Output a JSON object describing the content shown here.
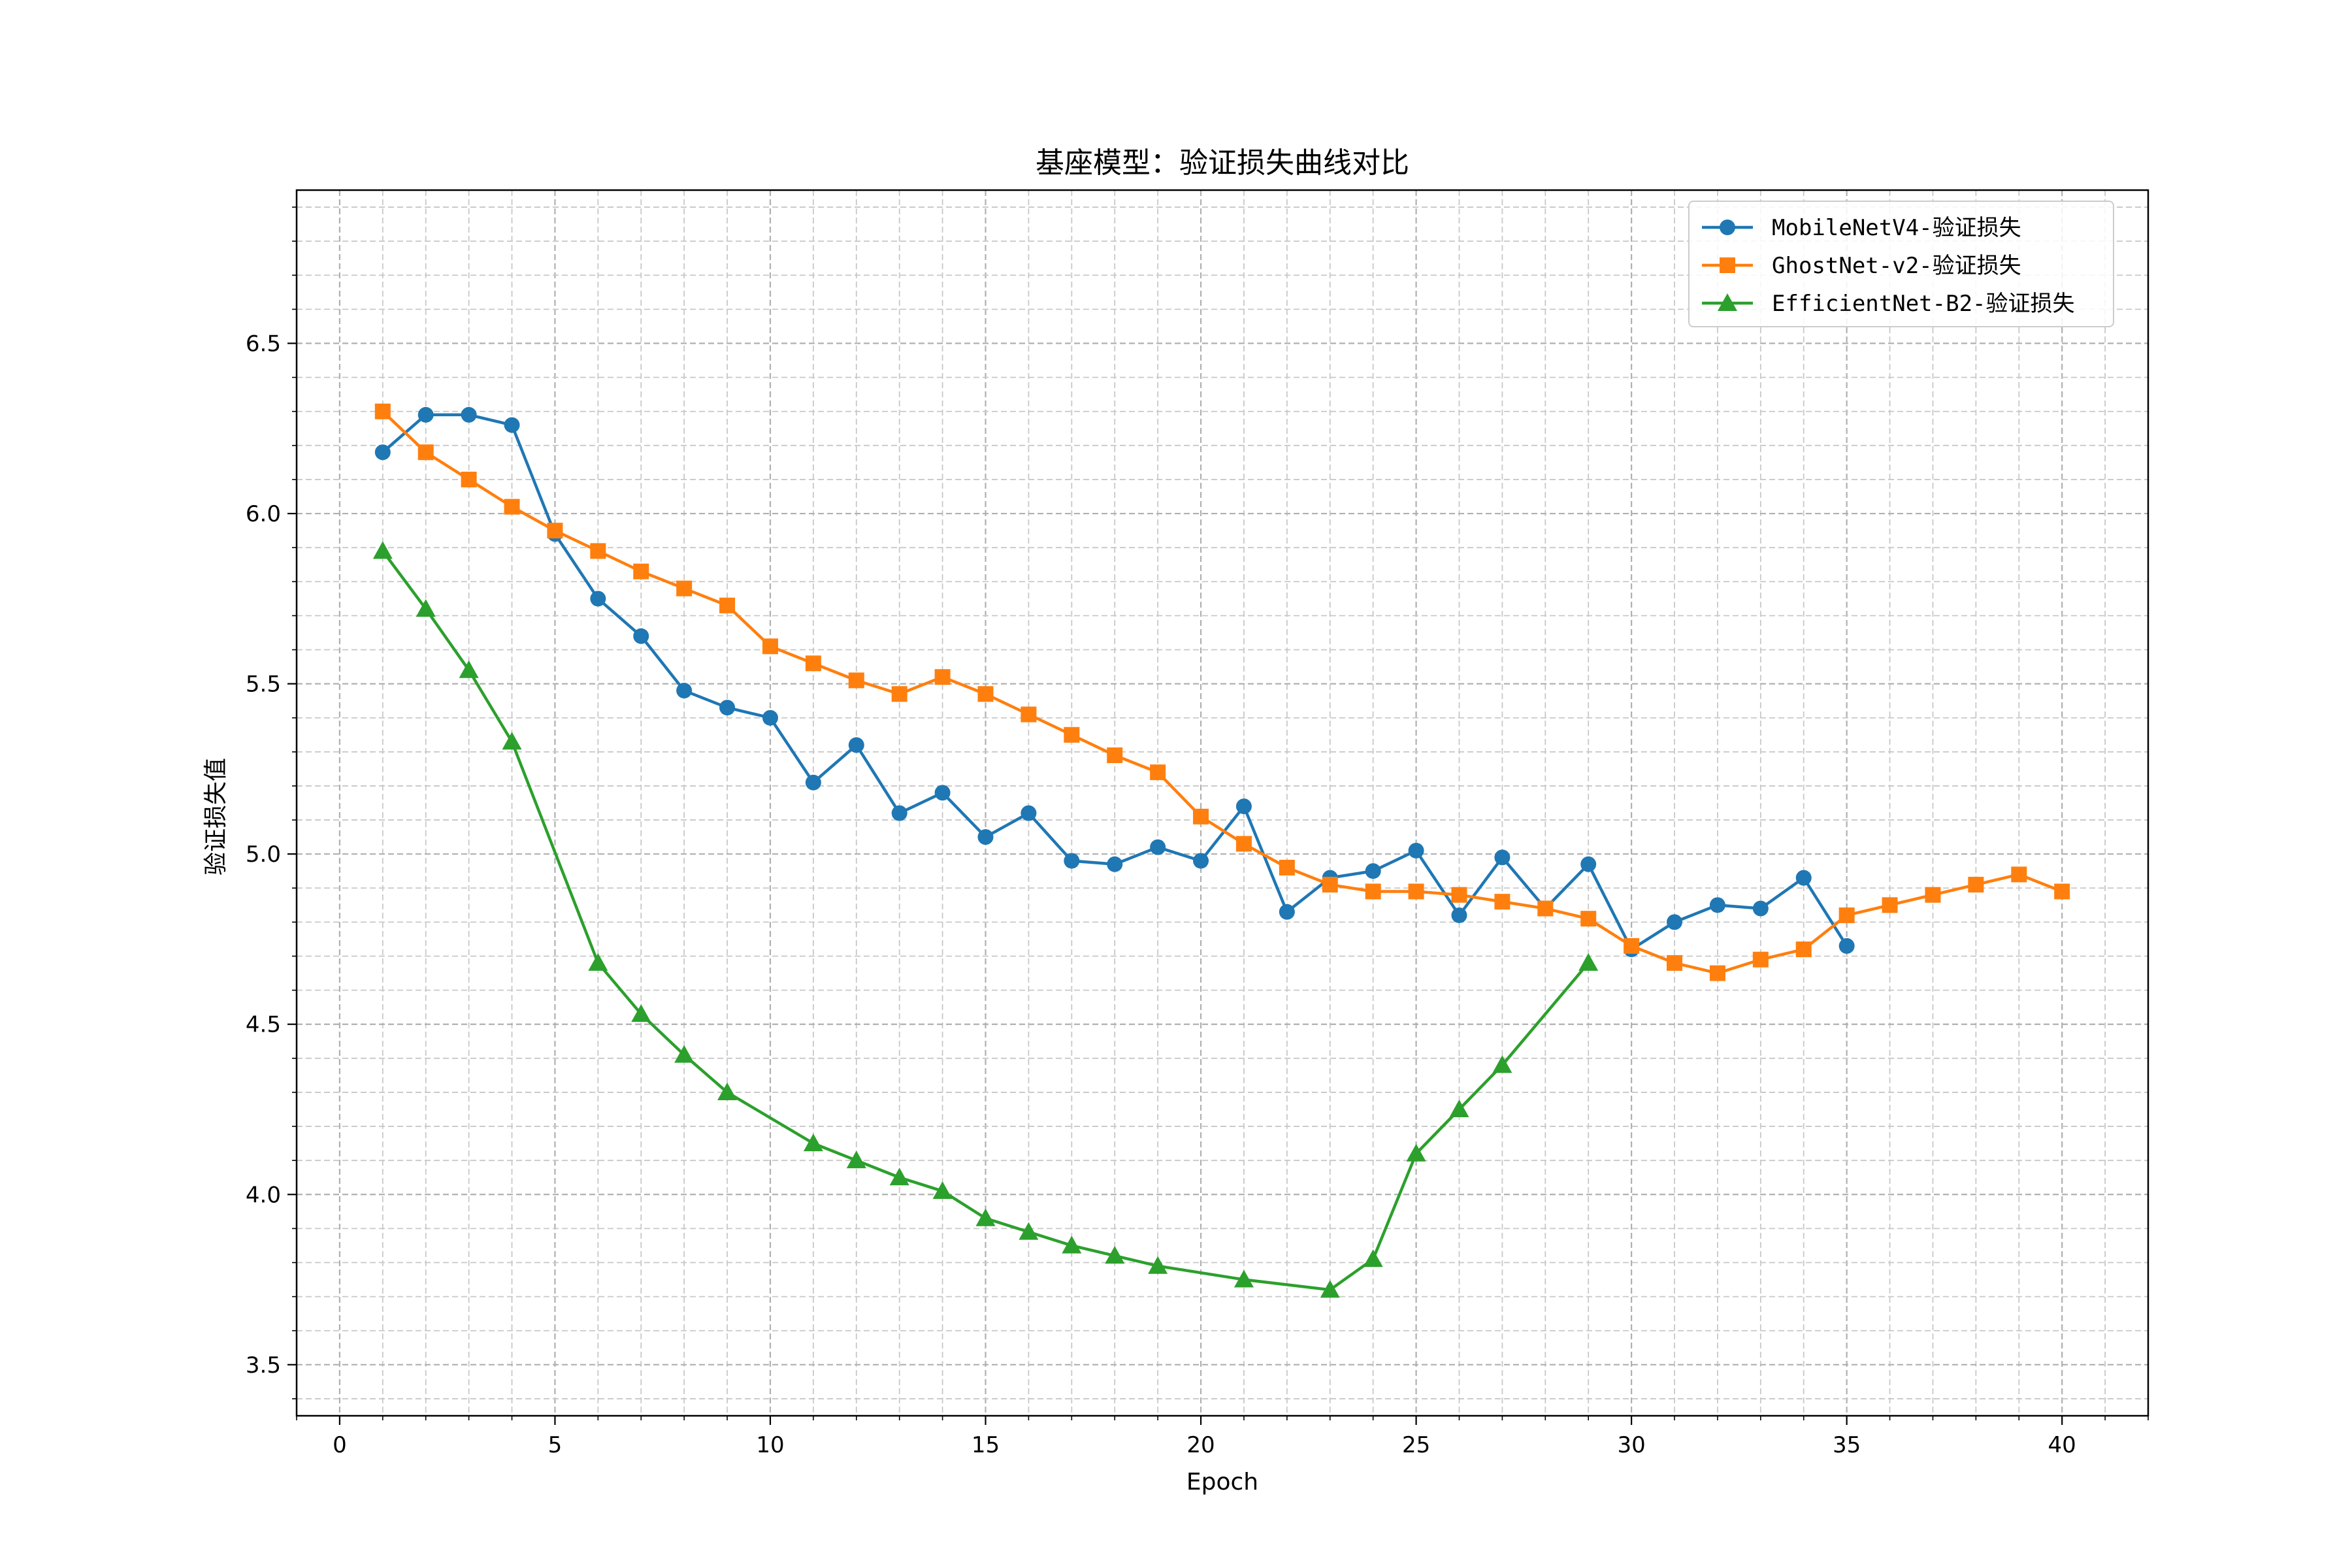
{
  "chart_data": {
    "type": "line",
    "title": "基座模型：验证损失曲线对比",
    "xlabel": "Epoch",
    "ylabel": "验证损失值",
    "xlim": [
      -1,
      42
    ],
    "ylim": [
      3.35,
      6.95
    ],
    "xticks": [
      0,
      5,
      10,
      15,
      20,
      25,
      30,
      35,
      40
    ],
    "yticks": [
      3.5,
      4.0,
      4.5,
      5.0,
      5.5,
      6.0,
      6.5
    ],
    "xtick_labels": [
      "0",
      "5",
      "10",
      "15",
      "20",
      "25",
      "30",
      "35",
      "40"
    ],
    "ytick_labels": [
      "3.5",
      "4.0",
      "4.5",
      "5.0",
      "5.5",
      "6.0",
      "6.5"
    ],
    "grid": true,
    "minor_grid": true,
    "legend_position": "top-right",
    "series": [
      {
        "name": "MobileNetV4-验证损失",
        "color": "#1f77b4",
        "marker": "circle",
        "x": [
          1,
          2,
          3,
          4,
          5,
          6,
          7,
          8,
          9,
          10,
          11,
          12,
          13,
          14,
          15,
          16,
          17,
          18,
          19,
          20,
          21,
          22,
          23,
          24,
          25,
          26,
          27,
          28,
          29,
          30,
          31,
          32,
          33,
          34,
          35
        ],
        "y": [
          6.18,
          6.29,
          6.29,
          6.26,
          5.94,
          5.75,
          5.64,
          5.48,
          5.43,
          5.4,
          5.21,
          5.32,
          5.12,
          5.18,
          5.05,
          5.12,
          4.98,
          4.97,
          5.02,
          4.98,
          5.14,
          4.83,
          4.93,
          4.95,
          5.01,
          4.82,
          4.99,
          4.84,
          4.97,
          4.72,
          4.8,
          4.85,
          4.84,
          4.93,
          4.73
        ]
      },
      {
        "name": "GhostNet-v2-验证损失",
        "color": "#ff7f0e",
        "marker": "square",
        "x": [
          1,
          2,
          3,
          4,
          5,
          6,
          7,
          8,
          9,
          10,
          11,
          12,
          13,
          14,
          15,
          16,
          17,
          18,
          19,
          20,
          21,
          22,
          23,
          24,
          25,
          26,
          27,
          28,
          29,
          30,
          31,
          32,
          33,
          34,
          35,
          36,
          37,
          38,
          39,
          40
        ],
        "y": [
          6.3,
          6.18,
          6.1,
          6.02,
          5.95,
          5.89,
          5.83,
          5.78,
          5.73,
          5.61,
          5.56,
          5.51,
          5.47,
          5.52,
          5.47,
          5.41,
          5.35,
          5.29,
          5.24,
          5.11,
          5.03,
          4.96,
          4.91,
          4.89,
          4.89,
          4.88,
          4.86,
          4.84,
          4.81,
          4.73,
          4.68,
          4.65,
          4.69,
          4.72,
          4.82,
          4.85,
          4.88,
          4.91,
          4.94,
          4.89
        ]
      },
      {
        "name": "EfficientNet-B2-验证损失",
        "color": "#2ca02c",
        "marker": "triangle",
        "x": [
          1,
          2,
          3,
          4,
          6,
          7,
          8,
          9,
          11,
          12,
          13,
          14,
          15,
          16,
          17,
          18,
          19,
          21,
          23,
          24,
          25,
          26,
          27,
          29
        ],
        "y": [
          5.89,
          5.72,
          5.54,
          5.33,
          4.68,
          4.53,
          4.41,
          4.3,
          4.15,
          4.1,
          4.05,
          4.01,
          3.93,
          3.89,
          3.85,
          3.82,
          3.79,
          3.75,
          3.72,
          3.81,
          4.12,
          4.25,
          4.38,
          4.68
        ]
      }
    ]
  }
}
